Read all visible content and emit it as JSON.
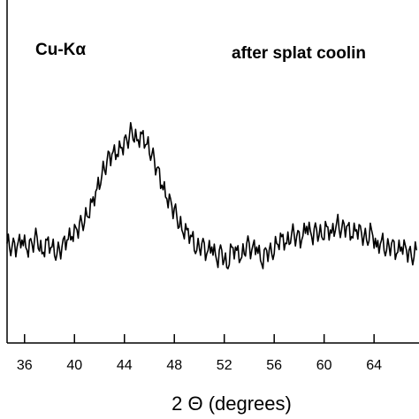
{
  "chart_data": {
    "type": "line",
    "title": "",
    "xlabel": "2 Θ (degrees)",
    "ylabel": "",
    "xlim": [
      34.6,
      67.6
    ],
    "ylim": [
      0,
      1
    ],
    "grid": false,
    "legend": "none",
    "xticks": [
      36,
      40,
      44,
      48,
      52,
      56,
      60,
      64
    ],
    "annotations": {
      "radiation": "Cu-Kα",
      "condition": "after splat coolin"
    },
    "series": [
      {
        "x": [
          34.6,
          35.0,
          35.4,
          35.8,
          36.2,
          36.6,
          37.0,
          37.4,
          37.8,
          38.2,
          38.6,
          39.0,
          39.4,
          39.8,
          40.2,
          40.6,
          41.0,
          41.4,
          41.8,
          42.2,
          42.6,
          43.0,
          43.4,
          43.8,
          44.2,
          44.6,
          45.0,
          45.4,
          45.8,
          46.2,
          46.6,
          47.0,
          47.4,
          47.8,
          48.2,
          48.6,
          49.0,
          49.4,
          49.8,
          50.2,
          50.6,
          51.0,
          51.4,
          51.8,
          52.2,
          52.6,
          53.0,
          53.4,
          53.8,
          54.2,
          54.6,
          55.0,
          55.4,
          55.8,
          56.2,
          56.6,
          57.0,
          57.4,
          57.8,
          58.2,
          58.6,
          59.0,
          59.4,
          59.8,
          60.2,
          60.6,
          61.0,
          61.4,
          61.8,
          62.2,
          62.6,
          63.0,
          63.4,
          63.8,
          64.2,
          64.6,
          65.0,
          65.4,
          65.8,
          66.2,
          66.6,
          67.0,
          67.4
        ],
        "values": [
          0.29,
          0.28,
          0.28,
          0.3,
          0.27,
          0.29,
          0.31,
          0.26,
          0.3,
          0.28,
          0.26,
          0.28,
          0.3,
          0.31,
          0.33,
          0.35,
          0.37,
          0.41,
          0.45,
          0.49,
          0.53,
          0.55,
          0.55,
          0.57,
          0.59,
          0.62,
          0.59,
          0.61,
          0.58,
          0.55,
          0.51,
          0.46,
          0.42,
          0.4,
          0.37,
          0.33,
          0.33,
          0.31,
          0.27,
          0.29,
          0.26,
          0.28,
          0.24,
          0.27,
          0.22,
          0.28,
          0.27,
          0.25,
          0.29,
          0.27,
          0.28,
          0.23,
          0.27,
          0.26,
          0.29,
          0.31,
          0.29,
          0.32,
          0.31,
          0.3,
          0.34,
          0.31,
          0.33,
          0.31,
          0.34,
          0.32,
          0.35,
          0.33,
          0.34,
          0.31,
          0.33,
          0.32,
          0.3,
          0.33,
          0.28,
          0.3,
          0.27,
          0.29,
          0.26,
          0.28,
          0.27,
          0.25,
          0.27
        ]
      }
    ]
  }
}
